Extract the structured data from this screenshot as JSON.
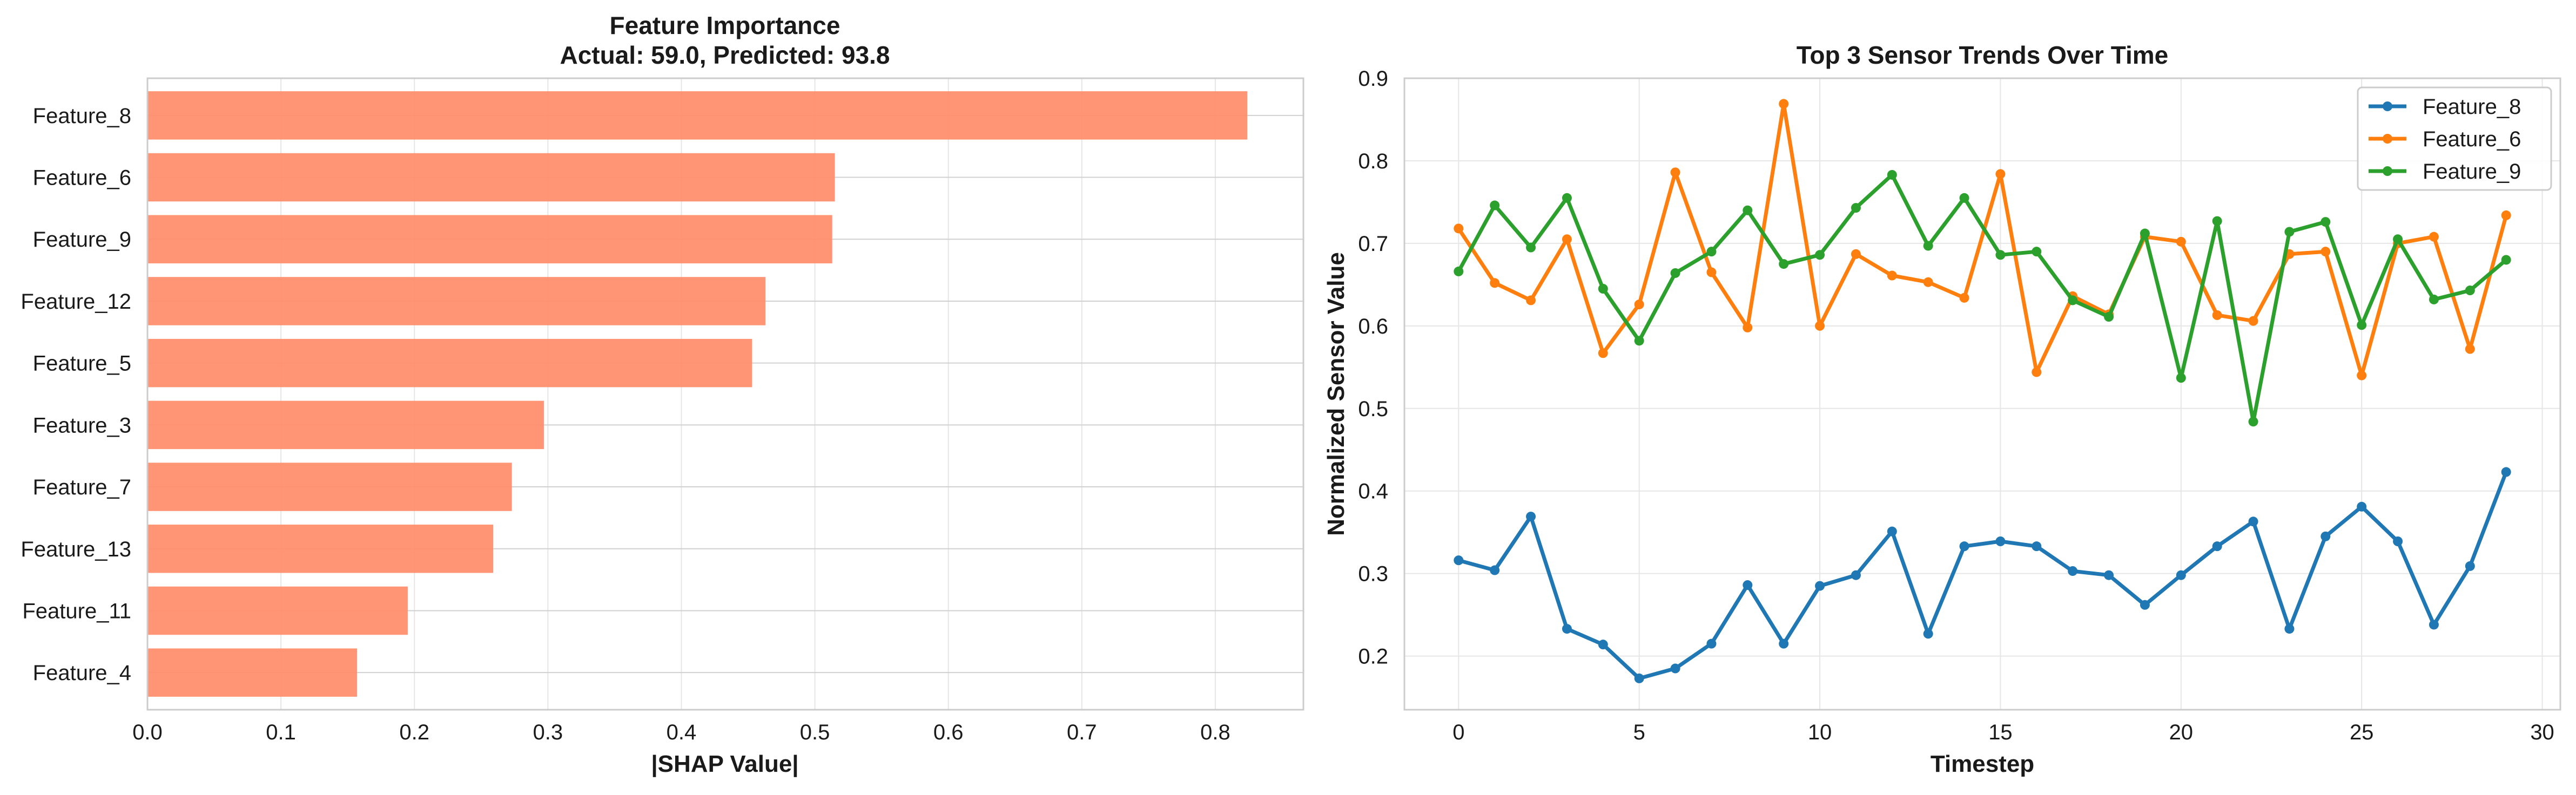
{
  "colors": {
    "bar": "#FF8C69",
    "series": [
      "#1f77b4",
      "#ff7f0e",
      "#2ca02c"
    ],
    "grid": "#e6e6e6",
    "frame": "#cccccc"
  },
  "chart_data": [
    {
      "type": "bar",
      "orientation": "horizontal",
      "title": "Feature Importance",
      "subtitle": "Actual: 59.0, Predicted: 93.8",
      "xlabel": "|SHAP Value|",
      "ylabel": "",
      "xlim": [
        0,
        0.866
      ],
      "xticks": [
        "0.0",
        "0.1",
        "0.2",
        "0.3",
        "0.4",
        "0.5",
        "0.6",
        "0.7",
        "0.8"
      ],
      "grid": true,
      "categories": [
        "Feature_8",
        "Feature_6",
        "Feature_9",
        "Feature_12",
        "Feature_5",
        "Feature_3",
        "Feature_7",
        "Feature_13",
        "Feature_11",
        "Feature_4"
      ],
      "values": [
        0.824,
        0.515,
        0.513,
        0.463,
        0.453,
        0.297,
        0.273,
        0.259,
        0.195,
        0.157
      ]
    },
    {
      "type": "line",
      "title": "Top 3 Sensor Trends Over Time",
      "xlabel": "Timestep",
      "ylabel": "Normalized Sensor Value",
      "xlim": [
        -1.5,
        30.5
      ],
      "ylim": [
        0.135,
        0.9
      ],
      "xticks": [
        "0",
        "5",
        "10",
        "15",
        "20",
        "25",
        "30"
      ],
      "yticks": [
        "0.2",
        "0.3",
        "0.4",
        "0.5",
        "0.6",
        "0.7",
        "0.8",
        "0.9"
      ],
      "grid": true,
      "legend_position": "top-right",
      "x": [
        0,
        1,
        2,
        3,
        4,
        5,
        6,
        7,
        8,
        9,
        10,
        11,
        12,
        13,
        14,
        15,
        16,
        17,
        18,
        19,
        20,
        21,
        22,
        23,
        24,
        25,
        26,
        27,
        28,
        29
      ],
      "series": [
        {
          "name": "Feature_8",
          "values": [
            0.316,
            0.304,
            0.369,
            0.233,
            0.214,
            0.173,
            0.185,
            0.215,
            0.286,
            0.215,
            0.285,
            0.298,
            0.351,
            0.227,
            0.333,
            0.339,
            0.333,
            0.303,
            0.298,
            0.262,
            0.298,
            0.333,
            0.363,
            0.233,
            0.345,
            0.381,
            0.339,
            0.238,
            0.309,
            0.423
          ]
        },
        {
          "name": "Feature_6",
          "values": [
            0.718,
            0.652,
            0.631,
            0.705,
            0.567,
            0.626,
            0.786,
            0.665,
            0.598,
            0.869,
            0.6,
            0.687,
            0.661,
            0.653,
            0.634,
            0.784,
            0.544,
            0.636,
            0.614,
            0.708,
            0.702,
            0.613,
            0.606,
            0.687,
            0.69,
            0.54,
            0.7,
            0.708,
            0.572,
            0.734
          ]
        },
        {
          "name": "Feature_9",
          "values": [
            0.666,
            0.746,
            0.695,
            0.755,
            0.645,
            0.582,
            0.664,
            0.69,
            0.74,
            0.675,
            0.686,
            0.743,
            0.783,
            0.697,
            0.755,
            0.686,
            0.69,
            0.631,
            0.611,
            0.712,
            0.537,
            0.727,
            0.484,
            0.714,
            0.726,
            0.601,
            0.705,
            0.632,
            0.643,
            0.68
          ]
        }
      ]
    }
  ]
}
